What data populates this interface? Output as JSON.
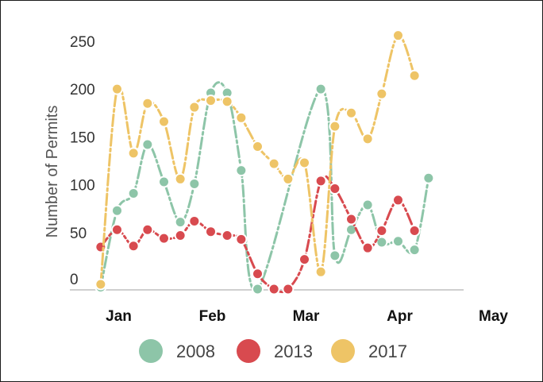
{
  "chart_data": {
    "type": "line",
    "ylabel": "Number of Permits",
    "xlabel": "",
    "ylim": [
      0,
      270
    ],
    "yticks": [
      0,
      50,
      100,
      150,
      200,
      250
    ],
    "x_tick_labels": [
      "Jan",
      "Feb",
      "Mar",
      "Apr",
      "May"
    ],
    "x_tick_positions": [
      1,
      5,
      9,
      13,
      17
    ],
    "x": [
      0.3,
      1,
      1.7,
      2.3,
      3,
      3.7,
      4.3,
      5,
      5.7,
      6.3,
      7,
      7.7,
      8.3,
      9,
      9.7,
      10.3,
      11,
      11.7,
      12.3,
      13,
      13.7,
      14.3,
      15,
      15.7,
      16.3,
      17,
      17.7,
      18.3
    ],
    "grid": false,
    "legend_position": "bottom",
    "series": [
      {
        "name": "2008",
        "color": "#8dc5a8",
        "values": [
          2,
          82,
          100,
          151,
          112,
          70,
          110,
          205,
          205,
          124,
          0,
          null,
          null,
          null,
          209,
          35,
          62,
          88,
          49,
          50,
          41,
          116,
          null,
          null,
          null,
          null,
          null,
          null
        ]
      },
      {
        "name": "2013",
        "color": "#d84a4f",
        "values": [
          44,
          62,
          45,
          62,
          53,
          56,
          71,
          60,
          56,
          52,
          16,
          0,
          0,
          31,
          113,
          105,
          73,
          43,
          61,
          93,
          61,
          null,
          null,
          null,
          null,
          null,
          null,
          null
        ]
      },
      {
        "name": "2017",
        "color": "#eec466",
        "values": [
          5,
          209,
          142,
          194,
          175,
          115,
          190,
          197,
          196,
          179,
          149,
          131,
          115,
          132,
          18,
          170,
          184,
          157,
          204,
          265,
          223,
          null,
          null,
          null,
          null,
          null,
          null,
          null
        ]
      }
    ]
  }
}
